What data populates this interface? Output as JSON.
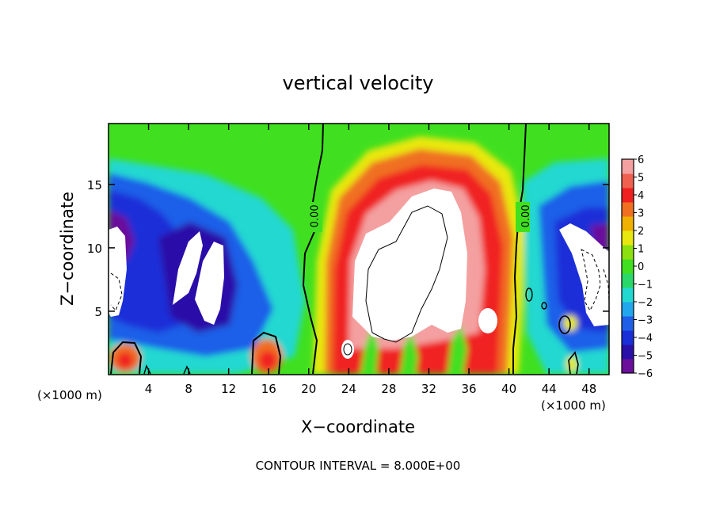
{
  "chart_data": {
    "type": "heatmap",
    "title": "vertical velocity",
    "xlabel": "X−coordinate",
    "ylabel": "Z−coordinate",
    "x_unit_left": "(×1000 m)",
    "x_unit_right": "(×1000 m)",
    "footer": "CONTOUR INTERVAL = 8.000E+00",
    "xlim": [
      0,
      50
    ],
    "ylim": [
      0,
      19.8
    ],
    "xticks": [
      4,
      8,
      12,
      16,
      20,
      24,
      28,
      32,
      36,
      40,
      44,
      48
    ],
    "xtick_labels": [
      "4",
      "8",
      "12",
      "16",
      "20",
      "24",
      "28",
      "32",
      "36",
      "40",
      "44",
      "48"
    ],
    "yticks": [
      5,
      10,
      15
    ],
    "ytick_labels": [
      "5",
      "10",
      "15"
    ],
    "colorbar": {
      "min": -6,
      "max": 6,
      "ticks": [
        6,
        5,
        4,
        3,
        2,
        1,
        0,
        -1,
        -2,
        -3,
        -4,
        -5,
        -6
      ],
      "tick_labels": [
        "6",
        "5",
        "4",
        "3",
        "2",
        "1",
        "0",
        "−1",
        "−2",
        "−3",
        "−4",
        "−5",
        "−6"
      ],
      "colors": [
        "#6a0f9c",
        "#2a10a8",
        "#1a2fd8",
        "#1f5fe8",
        "#22a7ee",
        "#22d8d0",
        "#2ad86a",
        "#40e020",
        "#8ce010",
        "#e8e810",
        "#f0b000",
        "#f07020",
        "#f02020",
        "#f06050",
        "#f4a0a0"
      ]
    },
    "contour_labels": [
      {
        "text": "0.00",
        "x": 20.6,
        "y": 12.5
      },
      {
        "text": "0.00",
        "x": 41.7,
        "y": 12.5
      }
    ]
  }
}
